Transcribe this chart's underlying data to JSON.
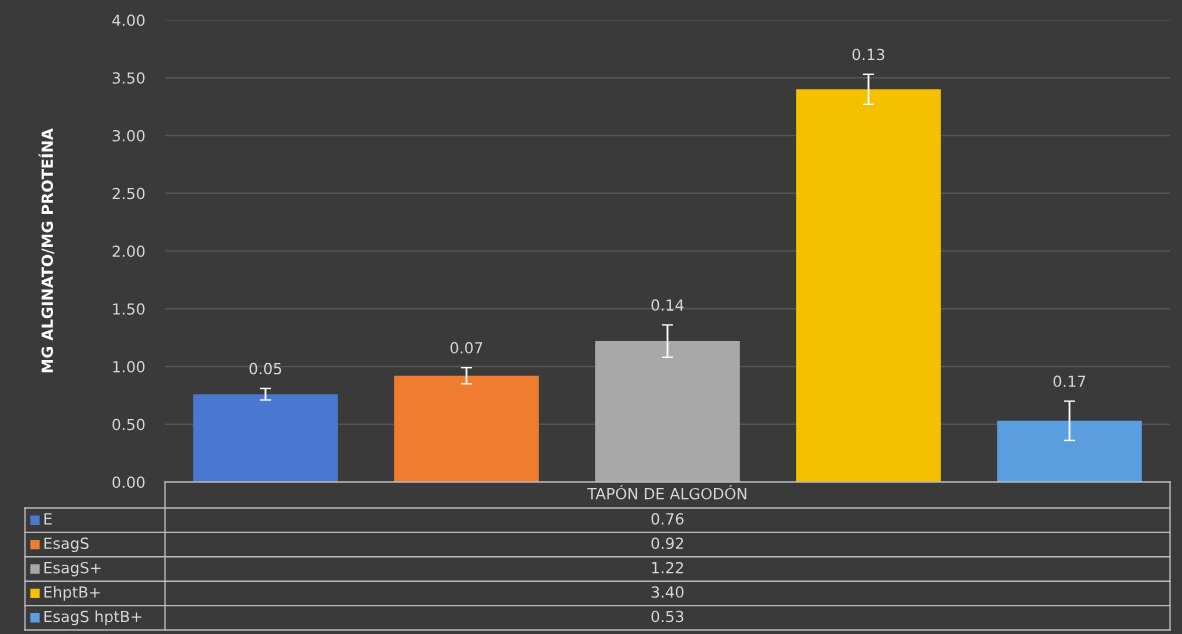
{
  "chart_data": {
    "type": "bar",
    "categories": [
      "TAPÓN DE ALGODÓN"
    ],
    "ylabel": "MG ALGINATO/MG PROTEÍNA",
    "ylim": [
      0,
      4
    ],
    "yticks": [
      {
        "value": 0,
        "label": "0.00"
      },
      {
        "value": 0.5,
        "label": "0.50"
      },
      {
        "value": 1,
        "label": "1.00"
      },
      {
        "value": 1.5,
        "label": "1.50"
      },
      {
        "value": 2,
        "label": "2.00"
      },
      {
        "value": 2.5,
        "label": "2.50"
      },
      {
        "value": 3,
        "label": "3.00"
      },
      {
        "value": 3.5,
        "label": "3.50"
      },
      {
        "value": 4,
        "label": "4.00"
      }
    ],
    "grid": "y",
    "legend": "bottom",
    "annotations": [
      "0.05",
      "0.07",
      "0.14",
      "0.13",
      "0.17",
      "0.76",
      "0.92",
      "1.22",
      "3.40",
      "0.53"
    ],
    "series": [
      {
        "name": "E",
        "color": "#4a78d0",
        "values": [
          0.76
        ],
        "errors": [
          0.05
        ]
      },
      {
        "name": "EsagS",
        "color": "#f07c30",
        "values": [
          0.92
        ],
        "errors": [
          0.07
        ]
      },
      {
        "name": "EsagS+",
        "color": "#a8a8a8",
        "values": [
          1.22
        ],
        "errors": [
          0.14
        ]
      },
      {
        "name": "EhptB+",
        "color": "#f5c000",
        "values": [
          3.4
        ],
        "errors": [
          0.13
        ]
      },
      {
        "name": "EsagS hptB+",
        "color": "#5a9ee0",
        "values": [
          0.53
        ],
        "errors": [
          0.17
        ]
      }
    ]
  }
}
